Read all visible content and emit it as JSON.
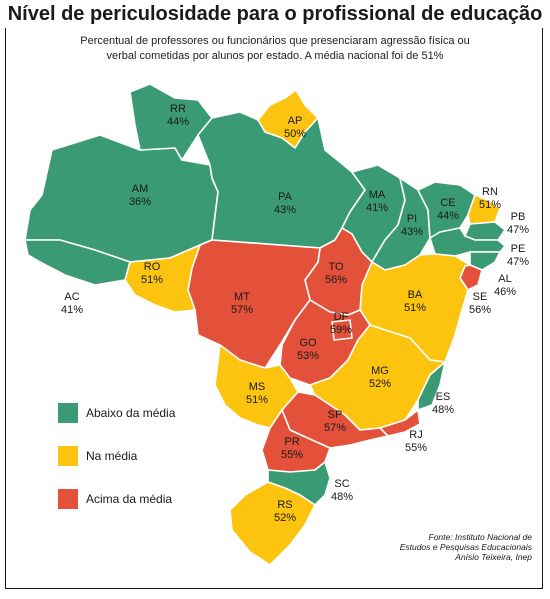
{
  "title": "Nível de periculosidade para o profissional de educação",
  "subtitle_line1": "Percentual de professores ou funcionários que presenciaram agressão física ou",
  "subtitle_line2": "verbal cometidas por alunos por estado. A média nacional foi de 51%",
  "colors": {
    "below": "#3a9a73",
    "at": "#fcc40e",
    "above": "#e3513a"
  },
  "legend": [
    {
      "label": "Abaixo da média",
      "category": "below"
    },
    {
      "label": "Na média",
      "category": "at"
    },
    {
      "label": "Acima da média",
      "category": "above"
    }
  ],
  "states": [
    {
      "code": "RR",
      "value": "44%",
      "category": "below"
    },
    {
      "code": "AP",
      "value": "50%",
      "category": "at"
    },
    {
      "code": "AM",
      "value": "36%",
      "category": "below"
    },
    {
      "code": "PA",
      "value": "43%",
      "category": "below"
    },
    {
      "code": "MA",
      "value": "41%",
      "category": "below"
    },
    {
      "code": "CE",
      "value": "44%",
      "category": "below"
    },
    {
      "code": "RN",
      "value": "51%",
      "category": "at"
    },
    {
      "code": "PB",
      "value": "47%",
      "category": "below"
    },
    {
      "code": "PE",
      "value": "47%",
      "category": "below"
    },
    {
      "code": "AL",
      "value": "46%",
      "category": "below"
    },
    {
      "code": "SE",
      "value": "56%",
      "category": "above"
    },
    {
      "code": "PI",
      "value": "43%",
      "category": "below"
    },
    {
      "code": "BA",
      "value": "51%",
      "category": "at"
    },
    {
      "code": "TO",
      "value": "56%",
      "category": "above"
    },
    {
      "code": "DF",
      "value": "59%",
      "category": "above"
    },
    {
      "code": "GO",
      "value": "53%",
      "category": "above"
    },
    {
      "code": "MT",
      "value": "57%",
      "category": "above"
    },
    {
      "code": "RO",
      "value": "51%",
      "category": "at"
    },
    {
      "code": "AC",
      "value": "41%",
      "category": "below"
    },
    {
      "code": "MS",
      "value": "51%",
      "category": "at"
    },
    {
      "code": "MG",
      "value": "52%",
      "category": "at"
    },
    {
      "code": "ES",
      "value": "48%",
      "category": "below"
    },
    {
      "code": "RJ",
      "value": "55%",
      "category": "above"
    },
    {
      "code": "SP",
      "value": "57%",
      "category": "above"
    },
    {
      "code": "PR",
      "value": "55%",
      "category": "above"
    },
    {
      "code": "SC",
      "value": "48%",
      "category": "below"
    },
    {
      "code": "RS",
      "value": "52%",
      "category": "at"
    }
  ],
  "source_line1": "Fonte: Instituto Nacional de",
  "source_line2": "Estudos e Pesquisas Educacionais",
  "source_line3": "Anísio Teixeira, Inep"
}
